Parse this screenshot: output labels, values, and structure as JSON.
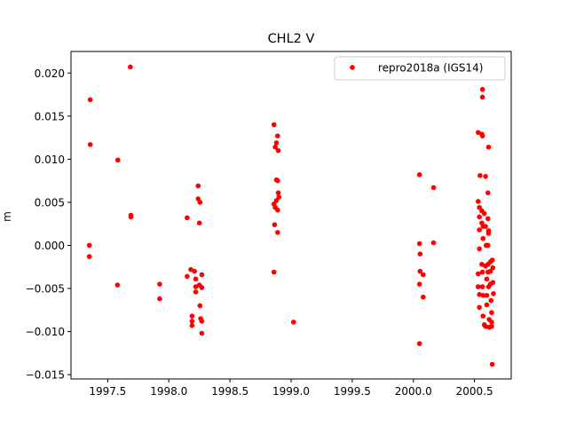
{
  "chart_data": {
    "type": "scatter",
    "title": "CHL2 V",
    "xlabel": "",
    "ylabel": "m",
    "xlim": [
      1997.2,
      2000.8
    ],
    "ylim": [
      -0.0155,
      0.0225
    ],
    "xticks": [
      {
        "value": 1997.5,
        "label": "1997.5"
      },
      {
        "value": 1998.0,
        "label": "1998.0"
      },
      {
        "value": 1998.5,
        "label": "1998.5"
      },
      {
        "value": 1999.0,
        "label": "1999.0"
      },
      {
        "value": 1999.5,
        "label": "1999.5"
      },
      {
        "value": 2000.0,
        "label": "2000.0"
      },
      {
        "value": 2000.5,
        "label": "2000.5"
      }
    ],
    "yticks": [
      {
        "value": 0.02,
        "label": "0.020"
      },
      {
        "value": 0.015,
        "label": "0.015"
      },
      {
        "value": 0.01,
        "label": "0.010"
      },
      {
        "value": 0.005,
        "label": "0.005"
      },
      {
        "value": 0.0,
        "label": "0.000"
      },
      {
        "value": -0.005,
        "label": "−0.005"
      },
      {
        "value": -0.01,
        "label": "−0.010"
      },
      {
        "value": -0.015,
        "label": "−0.015"
      }
    ],
    "grid": false,
    "legend_position": "top-right",
    "series": [
      {
        "name": "repro2018a (IGS14)",
        "color": "#ff0000",
        "marker": "circle",
        "points": [
          [
            1997.357,
            0.0169
          ],
          [
            1997.357,
            0.0117
          ],
          [
            1997.35,
            0.0
          ],
          [
            1997.35,
            -0.0013
          ],
          [
            1997.583,
            0.0099
          ],
          [
            1997.58,
            -0.0046
          ],
          [
            1997.685,
            0.0207
          ],
          [
            1997.69,
            0.0035
          ],
          [
            1997.69,
            0.0033
          ],
          [
            1997.925,
            -0.0045
          ],
          [
            1997.925,
            -0.0062
          ],
          [
            1998.15,
            0.0032
          ],
          [
            1998.15,
            -0.0036
          ],
          [
            1998.18,
            -0.0028
          ],
          [
            1998.19,
            -0.0082
          ],
          [
            1998.19,
            -0.0088
          ],
          [
            1998.19,
            -0.0093
          ],
          [
            1998.21,
            -0.003
          ],
          [
            1998.22,
            -0.0039
          ],
          [
            1998.22,
            -0.0048
          ],
          [
            1998.22,
            -0.0054
          ],
          [
            1998.24,
            0.0069
          ],
          [
            1998.24,
            0.0054
          ],
          [
            1998.25,
            0.0026
          ],
          [
            1998.255,
            0.005
          ],
          [
            1998.25,
            -0.0046
          ],
          [
            1998.255,
            -0.007
          ],
          [
            1998.26,
            -0.0085
          ],
          [
            1998.27,
            -0.0034
          ],
          [
            1998.27,
            -0.0049
          ],
          [
            1998.27,
            -0.0088
          ],
          [
            1998.27,
            -0.0102
          ],
          [
            1998.86,
            0.014
          ],
          [
            1998.87,
            0.0114
          ],
          [
            1998.88,
            0.0119
          ],
          [
            1998.89,
            0.0127
          ],
          [
            1998.895,
            0.011
          ],
          [
            1998.86,
            0.0048
          ],
          [
            1998.865,
            0.0024
          ],
          [
            1998.87,
            0.0044
          ],
          [
            1998.88,
            0.0052
          ],
          [
            1998.88,
            0.0076
          ],
          [
            1998.89,
            0.0075
          ],
          [
            1998.895,
            0.0061
          ],
          [
            1998.9,
            0.0056
          ],
          [
            1998.89,
            0.0041
          ],
          [
            1998.89,
            0.0015
          ],
          [
            1998.86,
            -0.0031
          ],
          [
            1999.02,
            -0.0089
          ],
          [
            2000.05,
            0.0082
          ],
          [
            2000.05,
            0.0002
          ],
          [
            2000.055,
            -0.001
          ],
          [
            2000.055,
            -0.003
          ],
          [
            2000.05,
            -0.0045
          ],
          [
            2000.05,
            -0.0114
          ],
          [
            2000.08,
            -0.0034
          ],
          [
            2000.08,
            -0.006
          ],
          [
            2000.165,
            0.0067
          ],
          [
            2000.165,
            0.0003
          ],
          [
            2000.53,
            0.0131
          ],
          [
            2000.53,
            0.0051
          ],
          [
            2000.54,
            0.0044
          ],
          [
            2000.545,
            0.0081
          ],
          [
            2000.54,
            0.0033
          ],
          [
            2000.54,
            0.0018
          ],
          [
            2000.54,
            -0.0004
          ],
          [
            2000.53,
            -0.0033
          ],
          [
            2000.53,
            -0.0048
          ],
          [
            2000.54,
            -0.0057
          ],
          [
            2000.54,
            -0.0072
          ],
          [
            2000.56,
            0.0129
          ],
          [
            2000.565,
            0.0127
          ],
          [
            2000.565,
            0.0181
          ],
          [
            2000.565,
            0.0172
          ],
          [
            2000.56,
            0.004
          ],
          [
            2000.56,
            0.0026
          ],
          [
            2000.57,
            0.0022
          ],
          [
            2000.57,
            0.0008
          ],
          [
            2000.56,
            -0.0022
          ],
          [
            2000.565,
            -0.0031
          ],
          [
            2000.565,
            -0.0048
          ],
          [
            2000.57,
            -0.0058
          ],
          [
            2000.57,
            -0.0082
          ],
          [
            2000.58,
            -0.0092
          ],
          [
            2000.59,
            -0.0094
          ],
          [
            2000.58,
            0.0037
          ],
          [
            2000.59,
            0.0022
          ],
          [
            2000.595,
            0.0
          ],
          [
            2000.59,
            0.008
          ],
          [
            2000.59,
            -0.0024
          ],
          [
            2000.6,
            -0.0039
          ],
          [
            2000.6,
            -0.0058
          ],
          [
            2000.6,
            -0.0069
          ],
          [
            2000.615,
            0.0114
          ],
          [
            2000.61,
            0.0061
          ],
          [
            2000.61,
            0.0031
          ],
          [
            2000.615,
            0.0017
          ],
          [
            2000.615,
            0.0014
          ],
          [
            2000.61,
            0.0
          ],
          [
            2000.61,
            -0.0022
          ],
          [
            2000.61,
            -0.0031
          ],
          [
            2000.615,
            -0.0048
          ],
          [
            2000.62,
            -0.0086
          ],
          [
            2000.62,
            -0.0095
          ],
          [
            2000.63,
            -0.0019
          ],
          [
            2000.63,
            -0.003
          ],
          [
            2000.63,
            -0.0045
          ],
          [
            2000.635,
            -0.0064
          ],
          [
            2000.64,
            -0.0078
          ],
          [
            2000.64,
            -0.0089
          ],
          [
            2000.64,
            -0.0094
          ],
          [
            2000.645,
            -0.0138
          ],
          [
            2000.645,
            -0.0017
          ],
          [
            2000.65,
            -0.0026
          ],
          [
            2000.65,
            -0.0043
          ],
          [
            2000.655,
            -0.0056
          ]
        ]
      }
    ]
  }
}
